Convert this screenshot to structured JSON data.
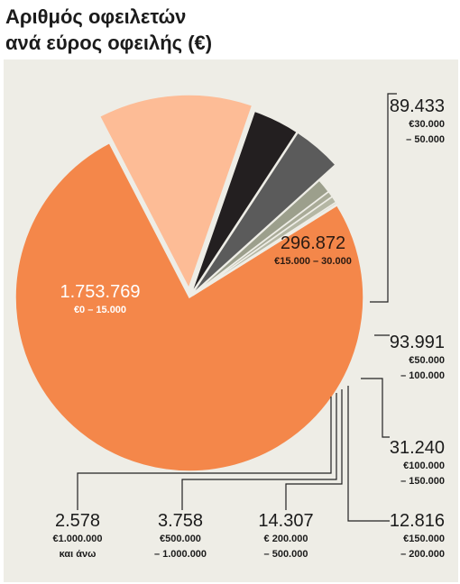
{
  "title_line1": "Αριθμός οφειλετών",
  "title_line2": "ανά εύρος οφειλής (€)",
  "chart_data": {
    "type": "pie",
    "title": "Αριθμός οφειλετών ανά εύρος οφειλής (€)",
    "slices": [
      {
        "id": "s0",
        "value": 1753769,
        "value_label": "1.753.769",
        "range_lines": [
          "€0 – 15.000"
        ],
        "color": "#f4874a"
      },
      {
        "id": "s1",
        "value": 296872,
        "value_label": "296.872",
        "range_lines": [
          "€15.000 – 30.000"
        ],
        "color": "#fdbc96"
      },
      {
        "id": "s2",
        "value": 89433,
        "value_label": "89.433",
        "range_lines": [
          "€30.000",
          "– 50.000"
        ],
        "color": "#231f20"
      },
      {
        "id": "s3",
        "value": 93991,
        "value_label": "93.991",
        "range_lines": [
          "€50.000",
          "– 100.000"
        ],
        "color": "#5b5b5b"
      },
      {
        "id": "s4",
        "value": 31240,
        "value_label": "31.240",
        "range_lines": [
          "€100.000",
          "– 150.000"
        ],
        "color": "#9c9f8c"
      },
      {
        "id": "s5",
        "value": 12816,
        "value_label": "12.816",
        "range_lines": [
          "€150.000",
          "– 200.000"
        ],
        "color": "#a9ab98"
      },
      {
        "id": "s6",
        "value": 14307,
        "value_label": "14.307",
        "range_lines": [
          "€ 200.000",
          "– 500.000"
        ],
        "color": "#b5b7a4"
      },
      {
        "id": "s7",
        "value": 3758,
        "value_label": "3.758",
        "range_lines": [
          "€500.000",
          "– 1.000.000"
        ],
        "color": "#c1c3b1"
      },
      {
        "id": "s8",
        "value": 2578,
        "value_label": "2.578",
        "range_lines": [
          "€1.000.000",
          "και άνω"
        ],
        "color": "#cdcfbe"
      }
    ]
  }
}
